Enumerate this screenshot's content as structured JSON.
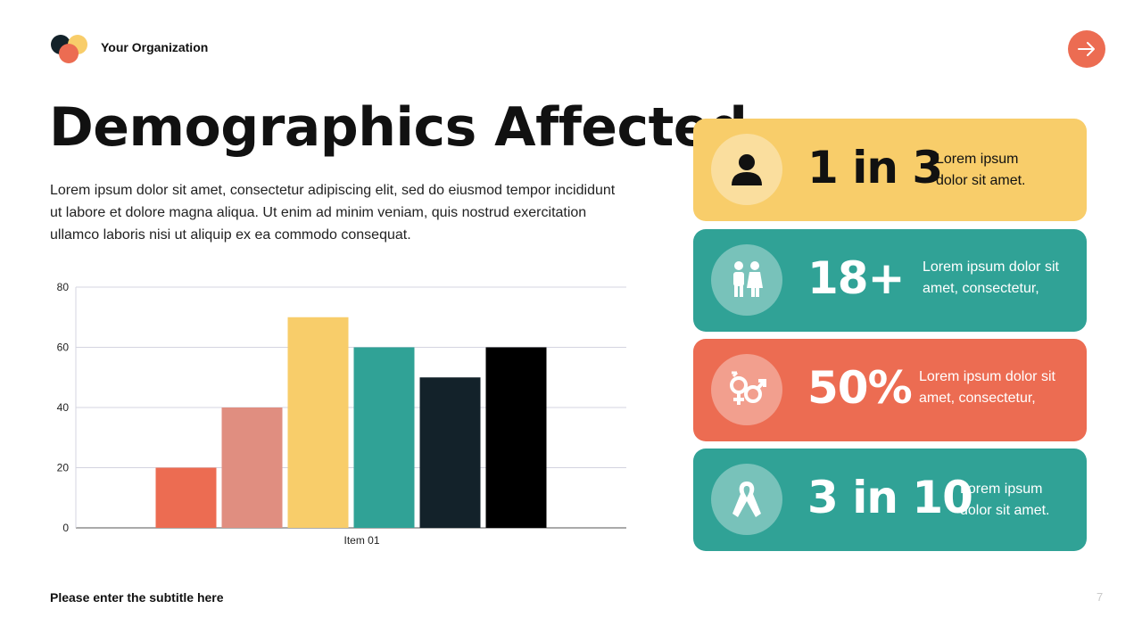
{
  "header": {
    "org_name": "Your Organization"
  },
  "title": "Demographics Affected",
  "body_text": "Lorem ipsum dolor sit amet, consectetur adipiscing elit, sed do eiusmod tempor incididunt ut labore et dolore magna aliqua. Ut enim ad minim veniam, quis nostrud exercitation ullamco laboris nisi ut aliquip ex ea commodo consequat.",
  "chart_data": {
    "type": "bar",
    "categories": [
      "Item 01"
    ],
    "series": [
      {
        "values": [
          20
        ],
        "color": "#ec6c52"
      },
      {
        "values": [
          40
        ],
        "color": "#e08e80"
      },
      {
        "values": [
          70
        ],
        "color": "#f8cd6a"
      },
      {
        "values": [
          60
        ],
        "color": "#30a296"
      },
      {
        "values": [
          50
        ],
        "color": "#13222a"
      },
      {
        "values": [
          60
        ],
        "color": "#000000"
      }
    ],
    "ylim": [
      0,
      80
    ],
    "yticks": [
      "0",
      "20",
      "40",
      "60",
      "80"
    ],
    "grid": true
  },
  "stats": [
    {
      "value": "1 in 3",
      "line1": "Lorem ipsum",
      "line2": "dolor sit amet.",
      "bg": "#f8cd6a",
      "text": "#111111",
      "icon": "person-icon"
    },
    {
      "value": "18+",
      "line1": "Lorem ipsum dolor sit",
      "line2": "amet, consectetur,",
      "bg": "#30a296",
      "text": "#ffffff",
      "icon": "people-icon"
    },
    {
      "value": "50%",
      "line1": "Lorem ipsum dolor sit",
      "line2": "amet, consectetur,",
      "bg": "#ec6c52",
      "text": "#ffffff",
      "icon": "gender-icon"
    },
    {
      "value": "3 in 10",
      "line1": "Lorem ipsum",
      "line2": "dolor sit amet.",
      "bg": "#30a296",
      "text": "#ffffff",
      "icon": "ribbon-icon"
    }
  ],
  "footer": {
    "subtitle": "Please enter the subtitle here",
    "page_number": "7"
  }
}
